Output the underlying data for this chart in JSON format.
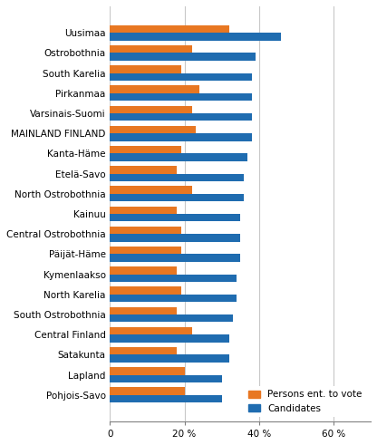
{
  "categories": [
    "Uusimaa",
    "Ostrobothnia",
    "South Karelia",
    "Pirkanmaa",
    "Varsinais-Suomi",
    "MAINLAND FINLAND",
    "Kanta-Häme",
    "Etelä-Savo",
    "North Ostrobothnia",
    "Kainuu",
    "Central Ostrobothnia",
    "Päijät-Häme",
    "Kymenlaakso",
    "North Karelia",
    "South Ostrobothnia",
    "Central Finland",
    "Satakunta",
    "Lapland",
    "Pohjois-Savo"
  ],
  "persons_entitled": [
    32,
    22,
    19,
    24,
    22,
    23,
    19,
    18,
    22,
    18,
    19,
    19,
    18,
    19,
    18,
    22,
    18,
    20,
    20
  ],
  "candidates": [
    46,
    39,
    38,
    38,
    38,
    38,
    37,
    36,
    36,
    35,
    35,
    35,
    34,
    34,
    33,
    32,
    32,
    30,
    30
  ],
  "orange_color": "#E87722",
  "blue_color": "#1F6CB0",
  "background_color": "#ffffff",
  "grid_color": "#c8c8c8",
  "xlim": [
    0,
    70
  ],
  "xticks": [
    0,
    20,
    40,
    60
  ],
  "xticklabels": [
    "0",
    "20 %",
    "40 %",
    "60 %"
  ],
  "legend_labels": [
    "Persons ent. to vote",
    "Candidates"
  ],
  "bar_height": 0.38,
  "tick_fontsize": 7.5
}
